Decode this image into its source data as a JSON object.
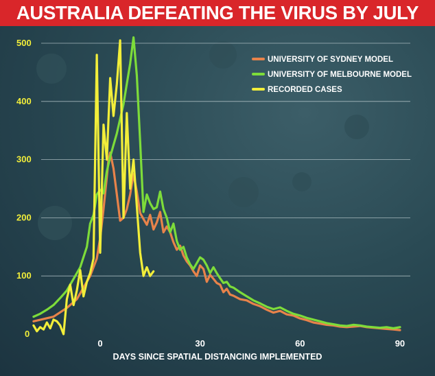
{
  "title": "AUSTRALIA DEFEATING THE VIRUS BY JULY",
  "colors": {
    "title_bg": "#d9262a",
    "sydney": "#e8834a",
    "melbourne": "#7ddc3a",
    "recorded": "#f2ee3a",
    "y_tick": "#f2ee3a",
    "x_tick": "#ffffff",
    "grid": "#d0dde0"
  },
  "chart_data": {
    "type": "line",
    "xlabel": "DAYS SINCE SPATIAL DISTANCING IMPLEMENTED",
    "ylabel": "",
    "xlim": [
      -20,
      92
    ],
    "ylim": [
      0,
      520
    ],
    "x_ticks": [
      0,
      30,
      60,
      90
    ],
    "y_ticks": [
      0,
      100,
      200,
      300,
      400,
      500
    ],
    "grid": "horizontal",
    "legend_position": "top-right",
    "series": [
      {
        "name": "UNIVERSITY OF SYDNEY MODEL",
        "color": "#e8834a",
        "points": [
          [
            -20,
            22
          ],
          [
            -14,
            30
          ],
          [
            -10,
            45
          ],
          [
            -7,
            60
          ],
          [
            -5,
            80
          ],
          [
            -3,
            100
          ],
          [
            -1,
            130
          ],
          [
            0,
            165
          ],
          [
            1,
            215
          ],
          [
            2,
            270
          ],
          [
            2.5,
            300
          ],
          [
            3,
            312
          ],
          [
            4,
            285
          ],
          [
            5,
            240
          ],
          [
            6,
            195
          ],
          [
            7,
            200
          ],
          [
            8,
            215
          ],
          [
            9,
            240
          ],
          [
            10,
            275
          ],
          [
            11,
            245
          ],
          [
            12,
            208
          ],
          [
            13,
            198
          ],
          [
            14,
            188
          ],
          [
            15,
            205
          ],
          [
            16,
            180
          ],
          [
            17,
            192
          ],
          [
            18,
            210
          ],
          [
            19,
            175
          ],
          [
            20,
            185
          ],
          [
            21,
            175
          ],
          [
            22,
            158
          ],
          [
            23,
            145
          ],
          [
            24,
            152
          ],
          [
            25,
            135
          ],
          [
            26,
            125
          ],
          [
            27,
            118
          ],
          [
            28,
            108
          ],
          [
            29,
            100
          ],
          [
            30,
            118
          ],
          [
            31,
            112
          ],
          [
            32,
            90
          ],
          [
            33,
            102
          ],
          [
            34,
            95
          ],
          [
            35,
            88
          ],
          [
            36,
            85
          ],
          [
            37,
            72
          ],
          [
            38,
            78
          ],
          [
            39,
            68
          ],
          [
            40,
            66
          ],
          [
            42,
            60
          ],
          [
            44,
            58
          ],
          [
            46,
            52
          ],
          [
            48,
            48
          ],
          [
            50,
            42
          ],
          [
            52,
            37
          ],
          [
            54,
            40
          ],
          [
            56,
            34
          ],
          [
            58,
            32
          ],
          [
            60,
            27
          ],
          [
            62,
            24
          ],
          [
            64,
            20
          ],
          [
            66,
            18
          ],
          [
            68,
            16
          ],
          [
            70,
            15
          ],
          [
            72,
            13
          ],
          [
            74,
            12
          ],
          [
            76,
            13
          ],
          [
            78,
            14
          ],
          [
            80,
            12
          ],
          [
            82,
            11
          ],
          [
            84,
            10
          ],
          [
            86,
            9
          ],
          [
            88,
            8
          ],
          [
            90,
            7
          ]
        ]
      },
      {
        "name": "UNIVERSITY OF MELBOURNE MODEL",
        "color": "#7ddc3a",
        "points": [
          [
            -20,
            30
          ],
          [
            -18,
            35
          ],
          [
            -16,
            42
          ],
          [
            -14,
            50
          ],
          [
            -12,
            62
          ],
          [
            -10,
            75
          ],
          [
            -8,
            95
          ],
          [
            -6,
            115
          ],
          [
            -4,
            150
          ],
          [
            -3,
            190
          ],
          [
            -2,
            205
          ],
          [
            -1,
            240
          ],
          [
            0,
            248
          ],
          [
            1,
            242
          ],
          [
            2,
            280
          ],
          [
            3,
            305
          ],
          [
            4,
            325
          ],
          [
            5,
            345
          ],
          [
            6,
            370
          ],
          [
            7,
            395
          ],
          [
            8,
            430
          ],
          [
            9,
            465
          ],
          [
            10,
            510
          ],
          [
            11,
            445
          ],
          [
            12,
            330
          ],
          [
            13,
            210
          ],
          [
            14,
            240
          ],
          [
            15,
            225
          ],
          [
            16,
            215
          ],
          [
            17,
            218
          ],
          [
            18,
            245
          ],
          [
            19,
            215
          ],
          [
            20,
            200
          ],
          [
            21,
            175
          ],
          [
            22,
            190
          ],
          [
            23,
            160
          ],
          [
            24,
            145
          ],
          [
            25,
            150
          ],
          [
            26,
            132
          ],
          [
            27,
            120
          ],
          [
            28,
            112
          ],
          [
            29,
            122
          ],
          [
            30,
            132
          ],
          [
            31,
            128
          ],
          [
            32,
            118
          ],
          [
            33,
            105
          ],
          [
            34,
            115
          ],
          [
            35,
            105
          ],
          [
            36,
            96
          ],
          [
            37,
            88
          ],
          [
            38,
            90
          ],
          [
            39,
            82
          ],
          [
            40,
            80
          ],
          [
            42,
            72
          ],
          [
            44,
            65
          ],
          [
            46,
            58
          ],
          [
            48,
            53
          ],
          [
            50,
            47
          ],
          [
            52,
            43
          ],
          [
            54,
            46
          ],
          [
            56,
            40
          ],
          [
            58,
            35
          ],
          [
            60,
            32
          ],
          [
            62,
            28
          ],
          [
            64,
            25
          ],
          [
            66,
            22
          ],
          [
            68,
            19
          ],
          [
            70,
            17
          ],
          [
            72,
            15
          ],
          [
            74,
            14
          ],
          [
            76,
            16
          ],
          [
            78,
            15
          ],
          [
            80,
            13
          ],
          [
            82,
            12
          ],
          [
            84,
            11
          ],
          [
            86,
            12
          ],
          [
            88,
            10
          ],
          [
            90,
            12
          ]
        ]
      },
      {
        "name": "RECORDED CASES",
        "color": "#f2ee3a",
        "points": [
          [
            -20,
            15
          ],
          [
            -19,
            5
          ],
          [
            -18,
            12
          ],
          [
            -17,
            8
          ],
          [
            -16,
            20
          ],
          [
            -15,
            10
          ],
          [
            -14,
            25
          ],
          [
            -13,
            22
          ],
          [
            -12,
            15
          ],
          [
            -11,
            0
          ],
          [
            -10,
            60
          ],
          [
            -9,
            85
          ],
          [
            -8,
            50
          ],
          [
            -7,
            75
          ],
          [
            -6,
            110
          ],
          [
            -5,
            65
          ],
          [
            -4,
            90
          ],
          [
            -3,
            105
          ],
          [
            -2,
            130
          ],
          [
            -1,
            480
          ],
          [
            0,
            140
          ],
          [
            1,
            360
          ],
          [
            2,
            300
          ],
          [
            3,
            440
          ],
          [
            4,
            375
          ],
          [
            5,
            430
          ],
          [
            6,
            505
          ],
          [
            7,
            200
          ],
          [
            8,
            380
          ],
          [
            9,
            250
          ],
          [
            10,
            300
          ],
          [
            11,
            220
          ],
          [
            12,
            140
          ],
          [
            13,
            100
          ],
          [
            14,
            115
          ],
          [
            15,
            100
          ],
          [
            16,
            108
          ]
        ]
      }
    ]
  }
}
